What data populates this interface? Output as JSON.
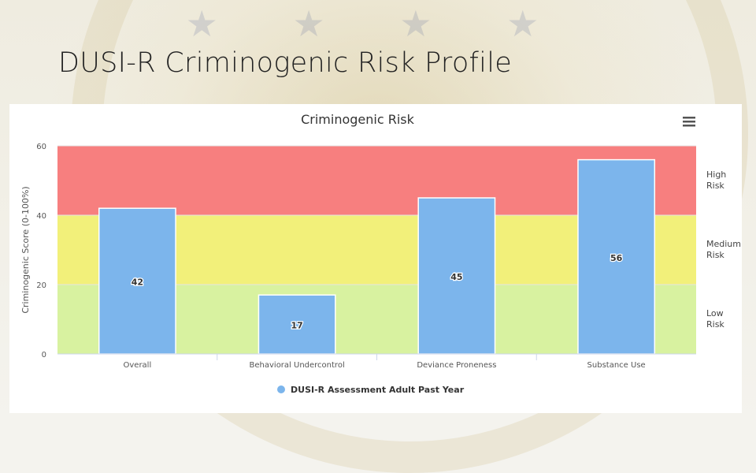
{
  "slide": {
    "title": "DUSI-R Criminogenic Risk Profile"
  },
  "chart_data": {
    "type": "bar",
    "title": "Criminogenic Risk",
    "ylabel": "Criminogenic Score (0-100%)",
    "xlabel": "",
    "ylim": [
      0,
      60
    ],
    "yticks": [
      0,
      20,
      40,
      60
    ],
    "categories": [
      "Overall",
      "Behavioral Undercontrol",
      "Deviance Proneness",
      "Substance Use"
    ],
    "series": [
      {
        "name": "DUSI-R Assessment Adult Past Year",
        "values": [
          42,
          17,
          45,
          56
        ],
        "color": "#7cb5ec"
      }
    ],
    "bands": [
      {
        "label": "Low Risk",
        "lines": [
          "Low",
          "Risk"
        ],
        "from": 0,
        "to": 20,
        "color": "#d8f2a0"
      },
      {
        "label": "Medium Risk",
        "lines": [
          "Medium",
          "Risk"
        ],
        "from": 20,
        "to": 40,
        "color": "#f2f07a"
      },
      {
        "label": "High Risk",
        "lines": [
          "High",
          "Risk"
        ],
        "from": 40,
        "to": 60,
        "color": "#f77f7f"
      }
    ],
    "legend_position": "bottom-center",
    "menu_icon": "hamburger-menu-icon"
  }
}
